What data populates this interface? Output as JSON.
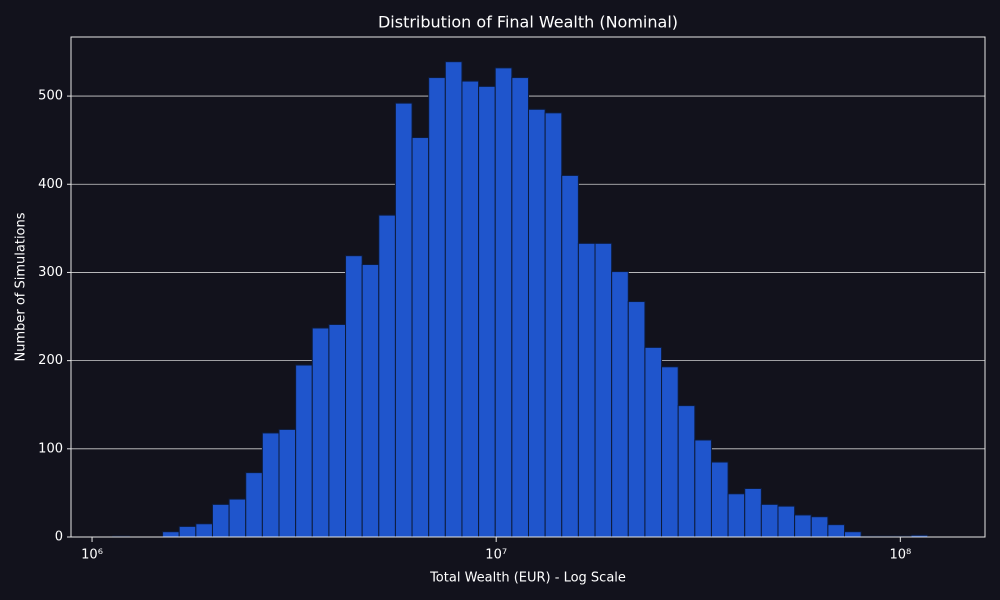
{
  "chart_data": {
    "type": "histogram",
    "title": "Distribution of Final Wealth (Nominal)",
    "xlabel": "Total Wealth (EUR) - Log Scale",
    "ylabel": "Number of Simulations",
    "xscale": "log",
    "bins": [
      1023000,
      1124700,
      1236500,
      1359400,
      1494600,
      1643100,
      1806500,
      1986000,
      2183400,
      2400500,
      2639100,
      2901400,
      3189800,
      3506900,
      3855500,
      4238700,
      4660000,
      5123200,
      5632400,
      6192300,
      6807800,
      7484500,
      8228500,
      9046400,
      9945600,
      10934000,
      12021000,
      13216000,
      14530000,
      15974000,
      17562000,
      19307000,
      21226000,
      23336000,
      25656000,
      28206000,
      31010000,
      34092000,
      37481000,
      41207000,
      45303000,
      49806000,
      54757000,
      60199000,
      66183000,
      72762000,
      79995000,
      87946000,
      96688000,
      106300000,
      116860000
    ],
    "values": [
      0,
      1,
      0,
      0,
      6,
      12,
      15,
      37,
      43,
      73,
      118,
      122,
      195,
      237,
      241,
      319,
      309,
      365,
      492,
      453,
      521,
      539,
      517,
      511,
      532,
      521,
      485,
      481,
      410,
      333,
      333,
      301,
      267,
      215,
      193,
      149,
      110,
      85,
      49,
      55,
      37,
      35,
      25,
      23,
      14,
      6,
      1,
      1,
      1,
      2
    ],
    "color": "#1f55cc",
    "edgecolor": "#0d1b3a",
    "xlim": [
      887000,
      162000000
    ],
    "xticks": [
      {
        "value": 1000000,
        "label": "10⁶"
      },
      {
        "value": 10000000,
        "label": "10⁷"
      },
      {
        "value": 100000000,
        "label": "10⁸"
      }
    ],
    "ylim": [
      0,
      567
    ],
    "yticks": [
      0,
      100,
      200,
      300,
      400,
      500
    ],
    "grid": true
  }
}
